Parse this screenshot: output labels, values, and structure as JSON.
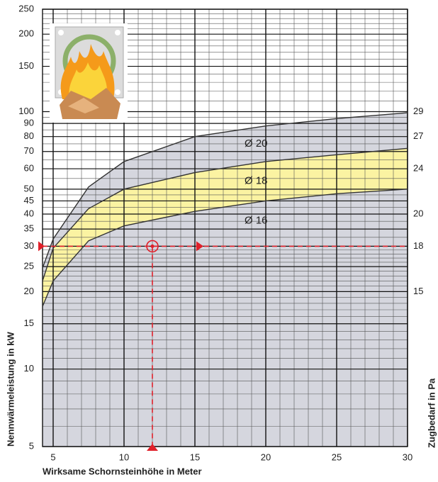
{
  "chart_data": {
    "type": "line",
    "x_label": "Wirksame Schornsteinhöhe in Meter",
    "y_label": "Nennwärmeleistung in kW",
    "y2_label": "Zugbedarf in Pa",
    "log_y": true,
    "xlim": [
      4.25,
      30
    ],
    "ylim": [
      5,
      250
    ],
    "xticks": [
      5,
      10,
      15,
      20,
      25,
      30
    ],
    "yticks": [
      5,
      10,
      15,
      20,
      25,
      30,
      35,
      40,
      45,
      50,
      60,
      70,
      80,
      90,
      100,
      150,
      200,
      250
    ],
    "x_minor_grid": [
      6,
      7,
      8,
      9,
      11,
      12,
      13,
      14,
      16,
      17,
      18,
      19,
      21,
      22,
      23,
      24,
      26,
      27,
      28,
      29
    ],
    "y_minor_grid": [
      6,
      7,
      8,
      9,
      11,
      12,
      13,
      14,
      16,
      17,
      18,
      19,
      21,
      22,
      23,
      24,
      26,
      27,
      28,
      29,
      32.5,
      37.5,
      42.5,
      47.5,
      55,
      65,
      75,
      85,
      95,
      110,
      120,
      130,
      140,
      160,
      170,
      180,
      190,
      210,
      220,
      230,
      240
    ],
    "right_axis_labels": [
      {
        "at": 20,
        "label": "15"
      },
      {
        "at": 30,
        "label": "18"
      },
      {
        "at": 40,
        "label": "20"
      },
      {
        "at": 60,
        "label": "24"
      },
      {
        "at": 80,
        "label": "27"
      },
      {
        "at": 100,
        "label": "29"
      }
    ],
    "x": [
      4.25,
      5,
      7.5,
      10,
      15,
      20,
      25,
      30
    ],
    "series": [
      {
        "name": "Ø 20",
        "color": "#333333",
        "values": [
          24.7,
          32,
          51,
          64,
          80,
          88,
          94,
          99
        ]
      },
      {
        "name": "Ø 18",
        "color": "#333333",
        "values": [
          22,
          29.5,
          42,
          50,
          58,
          64,
          68,
          72
        ]
      },
      {
        "name": "Ø 16",
        "color": "#333333",
        "values": [
          17.5,
          22,
          31.5,
          36,
          41,
          45,
          48,
          50
        ]
      }
    ],
    "band_color": "#fbf3a2",
    "area_color": "#d5d6de",
    "marker": {
      "x": 12,
      "y": 30,
      "color": "#e0202a"
    },
    "grid": true
  }
}
